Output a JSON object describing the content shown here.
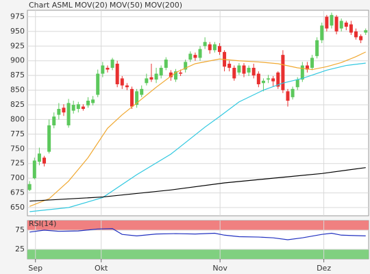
{
  "chart_data": [
    {
      "type": "candlestick",
      "title": "Chart ASML",
      "title_color": "#e05050",
      "x": [
        0,
        1,
        2,
        3,
        4,
        5,
        6,
        7,
        8,
        9,
        10,
        11,
        12,
        13,
        14,
        15,
        16,
        17,
        18,
        19,
        20,
        21,
        22,
        23,
        24,
        25,
        26,
        27,
        28,
        29,
        30,
        31,
        32,
        33,
        34,
        35,
        36,
        37,
        38,
        39,
        40,
        41,
        42,
        43,
        44,
        45,
        46,
        47,
        48,
        49,
        50,
        51,
        52,
        53,
        54,
        55,
        56,
        57,
        58,
        59,
        60,
        61,
        62,
        63,
        64,
        65,
        66,
        67,
        68,
        69
      ],
      "open": [
        680,
        700,
        728,
        735,
        745,
        790,
        808,
        820,
        790,
        815,
        818,
        822,
        824,
        828,
        842,
        878,
        888,
        888,
        895,
        870,
        858,
        852,
        825,
        842,
        862,
        872,
        868,
        875,
        888,
        880,
        868,
        880,
        885,
        902,
        910,
        905,
        925,
        928,
        918,
        925,
        915,
        895,
        888,
        880,
        892,
        880,
        888,
        878,
        862,
        868,
        870,
        880,
        910,
        848,
        838,
        855,
        868,
        892,
        888,
        908,
        935,
        975,
        960,
        975,
        955,
        965,
        962,
        950,
        942,
        948
      ],
      "high": [
        695,
        735,
        752,
        738,
        800,
        812,
        828,
        826,
        835,
        832,
        830,
        826,
        838,
        840,
        885,
        898,
        892,
        905,
        900,
        874,
        862,
        856,
        852,
        858,
        878,
        895,
        888,
        892,
        906,
        884,
        886,
        885,
        902,
        916,
        914,
        925,
        940,
        932,
        932,
        930,
        918,
        900,
        892,
        896,
        896,
        892,
        895,
        882,
        870,
        876,
        874,
        882,
        918,
        852,
        856,
        872,
        898,
        898,
        910,
        940,
        965,
        978,
        982,
        978,
        972,
        968,
        968,
        955,
        945,
        955
      ],
      "low": [
        678,
        698,
        722,
        720,
        742,
        785,
        800,
        806,
        786,
        810,
        812,
        815,
        820,
        824,
        838,
        872,
        880,
        884,
        855,
        852,
        850,
        818,
        820,
        838,
        858,
        864,
        862,
        870,
        884,
        866,
        864,
        874,
        880,
        898,
        900,
        900,
        920,
        912,
        914,
        910,
        882,
        882,
        866,
        876,
        872,
        874,
        870,
        855,
        848,
        862,
        856,
        852,
        845,
        822,
        834,
        850,
        864,
        880,
        884,
        904,
        930,
        950,
        955,
        945,
        950,
        952,
        944,
        936,
        930,
        944
      ],
      "close": [
        690,
        730,
        742,
        725,
        790,
        805,
        818,
        812,
        828,
        825,
        826,
        818,
        832,
        834,
        878,
        892,
        885,
        902,
        860,
        858,
        855,
        822,
        848,
        852,
        870,
        868,
        878,
        888,
        902,
        872,
        882,
        878,
        898,
        912,
        905,
        920,
        932,
        918,
        928,
        915,
        890,
        888,
        870,
        892,
        878,
        888,
        875,
        860,
        866,
        870,
        865,
        856,
        850,
        832,
        852,
        868,
        892,
        885,
        905,
        935,
        960,
        955,
        978,
        950,
        968,
        958,
        948,
        940,
        935,
        952
      ],
      "up_color": "#5cc85c",
      "down_color": "#e83030",
      "series": [
        {
          "name": "MOV(20)",
          "color": "#f0a830",
          "x": [
            0,
            4,
            8,
            12,
            16,
            19,
            22,
            26,
            30,
            34,
            39,
            43,
            47,
            51,
            55,
            58,
            61,
            64,
            67,
            69
          ],
          "values": [
            652,
            665,
            695,
            735,
            785,
            808,
            828,
            855,
            880,
            895,
            903,
            900,
            898,
            895,
            888,
            885,
            890,
            897,
            907,
            915
          ]
        },
        {
          "name": "MOV(50)",
          "color": "#30c8e0",
          "x": [
            0,
            8,
            15,
            22,
            29,
            36,
            39,
            43,
            48,
            52,
            56,
            61,
            65,
            69
          ],
          "values": [
            643,
            650,
            667,
            706,
            741,
            787,
            805,
            830,
            850,
            862,
            870,
            884,
            892,
            896
          ]
        },
        {
          "name": "MOV(200)",
          "color": "#000000",
          "x": [
            0,
            15,
            29,
            40,
            50,
            60,
            69
          ],
          "values": [
            661,
            668,
            680,
            692,
            700,
            708,
            718
          ]
        }
      ],
      "xlim": [
        -0.45,
        69.6
      ],
      "ylim": [
        636,
        986
      ],
      "xticks": [
        {
          "value": 1.2,
          "label": "Sep"
        },
        {
          "value": 14.7,
          "label": "Okt"
        },
        {
          "value": 39.1,
          "label": "Nov"
        },
        {
          "value": 60.4,
          "label": "Dez"
        }
      ],
      "yticks": [
        650,
        675,
        700,
        725,
        750,
        775,
        800,
        825,
        850,
        875,
        900,
        925,
        950,
        975
      ],
      "grid": true
    },
    {
      "type": "line",
      "title": "RSI(14)",
      "series": [
        {
          "name": "RSI",
          "color": "#2030c0",
          "x": [
            0,
            3,
            6,
            10,
            14,
            17,
            19,
            22,
            26,
            30,
            34,
            38,
            40,
            43,
            47,
            50,
            53,
            56,
            60,
            62,
            64,
            69
          ],
          "values": [
            70,
            75,
            72,
            73,
            78,
            79,
            64,
            60,
            65,
            66,
            65,
            67,
            62,
            58,
            57,
            55,
            50,
            55,
            64,
            67,
            62,
            60
          ]
        }
      ],
      "upper_band": [
        75,
        100
      ],
      "upper_color": "#f08080",
      "lower_band": [
        0,
        25
      ],
      "lower_color": "#80d080",
      "xlim": [
        -0.45,
        69.6
      ],
      "ylim": [
        0,
        100
      ],
      "yticks": [
        25,
        75
      ],
      "grid": true
    }
  ]
}
